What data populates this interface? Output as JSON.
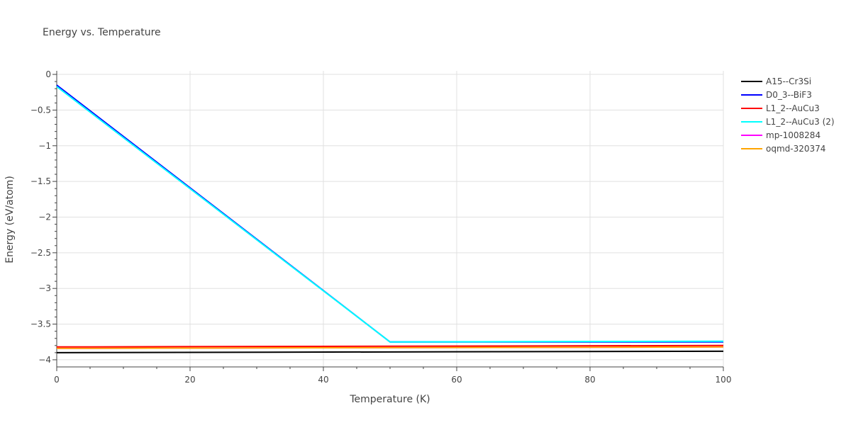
{
  "chart_data": {
    "type": "line",
    "title": "Energy vs. Temperature",
    "xlabel": "Temperature (K)",
    "ylabel": "Energy (eV/atom)",
    "xlim": [
      0,
      100
    ],
    "ylim": [
      -4.1,
      0.05
    ],
    "xticks": [
      0,
      20,
      40,
      60,
      80,
      100
    ],
    "xtick_labels": [
      "0",
      "20",
      "40",
      "60",
      "80",
      "100"
    ],
    "yticks": [
      0,
      -0.5,
      -1,
      -1.5,
      -2,
      -2.5,
      -3,
      -3.5,
      -4
    ],
    "ytick_labels": [
      "0",
      "−0.5",
      "−1",
      "−1.5",
      "−2",
      "−2.5",
      "−3",
      "−3.5",
      "−4"
    ],
    "grid": true,
    "legend_position": "right",
    "series": [
      {
        "name": "A15--Cr3Si",
        "color": "#000000",
        "x": [
          0,
          100
        ],
        "y": [
          -3.9,
          -3.88
        ]
      },
      {
        "name": "D0_3--BiF3",
        "color": "#0000ff",
        "x": [
          0,
          50,
          100
        ],
        "y": [
          -0.15,
          -3.75,
          -3.75
        ]
      },
      {
        "name": "L1_2--AuCu3",
        "color": "#ff0000",
        "x": [
          0,
          100
        ],
        "y": [
          -3.82,
          -3.8
        ]
      },
      {
        "name": "L1_2--AuCu3 (2)",
        "color": "#00ffff",
        "x": [
          0,
          50,
          100
        ],
        "y": [
          -0.17,
          -3.75,
          -3.74
        ]
      },
      {
        "name": "mp-1008284",
        "color": "#ff00ff",
        "x": [
          0,
          100
        ],
        "y": [
          -3.84,
          -3.82
        ]
      },
      {
        "name": "oqmd-320374",
        "color": "#ffa500",
        "x": [
          0,
          100
        ],
        "y": [
          -3.84,
          -3.82
        ]
      }
    ]
  }
}
